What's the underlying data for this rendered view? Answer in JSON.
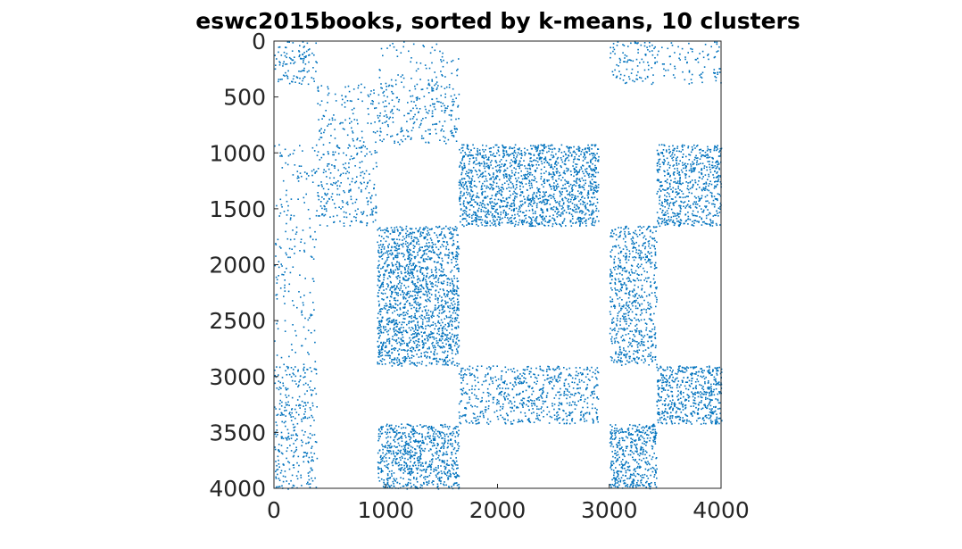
{
  "chart_data": {
    "type": "spy",
    "title": "eswc2015books, sorted by k-means, 10 clusters",
    "xlabel": "",
    "ylabel": "",
    "xlim": [
      0,
      4000
    ],
    "ylim": [
      0,
      4000
    ],
    "y_reversed": true,
    "x_ticks": [
      0,
      1000,
      2000,
      3000,
      4000
    ],
    "y_ticks": [
      0,
      500,
      1000,
      1500,
      2000,
      2500,
      3000,
      3500,
      4000
    ],
    "x_tick_labels": [
      "0",
      "1000",
      "2000",
      "3000",
      "4000"
    ],
    "y_tick_labels": [
      "0",
      "500",
      "1000",
      "1500",
      "2000",
      "2500",
      "3000",
      "3500",
      "4000"
    ],
    "marker_color": "#0072BD",
    "grid": false,
    "legend": "none",
    "blocks": [
      {
        "rows": [
          0,
          380
        ],
        "cols": [
          0,
          380
        ],
        "density": 0.06
      },
      {
        "rows": [
          0,
          380
        ],
        "cols": [
          920,
          1650
        ],
        "density": 0.02
      },
      {
        "rows": [
          0,
          380
        ],
        "cols": [
          3000,
          3420
        ],
        "density": 0.05
      },
      {
        "rows": [
          0,
          380
        ],
        "cols": [
          3420,
          4000
        ],
        "density": 0.03
      },
      {
        "rows": [
          380,
          920
        ],
        "cols": [
          380,
          920
        ],
        "density": 0.03
      },
      {
        "rows": [
          380,
          920
        ],
        "cols": [
          920,
          1650
        ],
        "density": 0.05
      },
      {
        "rows": [
          920,
          1650
        ],
        "cols": [
          0,
          380
        ],
        "density": 0.02
      },
      {
        "rows": [
          920,
          1650
        ],
        "cols": [
          380,
          920
        ],
        "density": 0.05
      },
      {
        "rows": [
          920,
          1650
        ],
        "cols": [
          1650,
          2900
        ],
        "density": 0.14
      },
      {
        "rows": [
          920,
          1650
        ],
        "cols": [
          3420,
          4000
        ],
        "density": 0.12
      },
      {
        "rows": [
          1650,
          2900
        ],
        "cols": [
          0,
          380
        ],
        "density": 0.02
      },
      {
        "rows": [
          1650,
          2900
        ],
        "cols": [
          920,
          1650
        ],
        "density": 0.14
      },
      {
        "rows": [
          1650,
          2900
        ],
        "cols": [
          3000,
          3420
        ],
        "density": 0.1
      },
      {
        "rows": [
          2900,
          3420
        ],
        "cols": [
          0,
          380
        ],
        "density": 0.06
      },
      {
        "rows": [
          2900,
          3420
        ],
        "cols": [
          1650,
          2900
        ],
        "density": 0.08
      },
      {
        "rows": [
          2900,
          3420
        ],
        "cols": [
          3420,
          4000
        ],
        "density": 0.14
      },
      {
        "rows": [
          3420,
          4000
        ],
        "cols": [
          0,
          380
        ],
        "density": 0.06
      },
      {
        "rows": [
          3420,
          4000
        ],
        "cols": [
          920,
          1650
        ],
        "density": 0.14
      },
      {
        "rows": [
          3420,
          4000
        ],
        "cols": [
          3000,
          3420
        ],
        "density": 0.14
      }
    ]
  }
}
